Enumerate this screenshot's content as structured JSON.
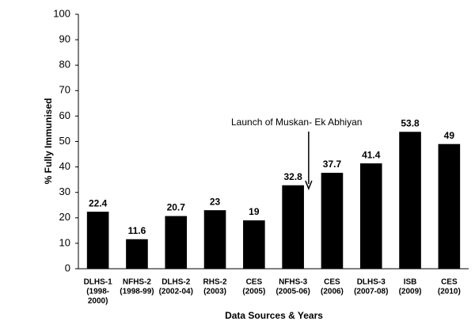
{
  "chart_data": {
    "type": "bar",
    "x_label": "Data Sources & Years",
    "y_label": "% Fully  Immunised",
    "annotation": "Launch of Muskan- Ek Abhiyan",
    "categories": [
      [
        "DLHS-1",
        "(1998-",
        "2000)"
      ],
      [
        "NFHS-2",
        "(1998-99)"
      ],
      [
        "DLHS-2",
        "(2002-04)"
      ],
      [
        "RHS-2",
        "(2003)"
      ],
      [
        "CES",
        "(2005)"
      ],
      [
        "NFHS-3",
        "(2005-06)"
      ],
      [
        "CES",
        "(2006)"
      ],
      [
        "DLHS-3",
        "(2007-08)"
      ],
      [
        "ISB",
        "(2009)"
      ],
      [
        "CES",
        "(2010)"
      ]
    ],
    "values": [
      22.4,
      11.6,
      20.7,
      23,
      19,
      32.8,
      37.7,
      41.4,
      53.8,
      49
    ],
    "color": "#000000",
    "ylim": [
      0,
      100
    ],
    "yticks": [
      0,
      10,
      20,
      30,
      40,
      50,
      60,
      70,
      80,
      90,
      100
    ],
    "grid": false
  }
}
